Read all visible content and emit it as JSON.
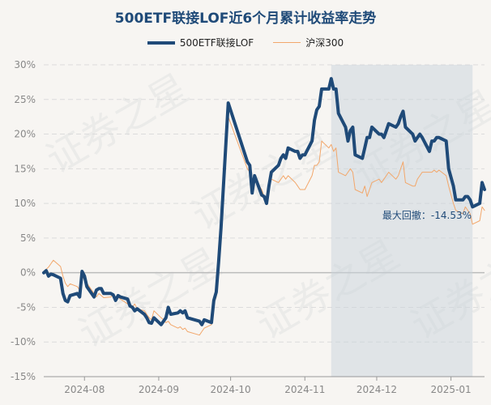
{
  "chart_data": {
    "type": "line",
    "title": "500ETF联接LOF近6个月累计收益率走势",
    "series": [
      {
        "name": "500ETF联接LOF",
        "color": "#1f4a78",
        "points": [
          [
            "2024-07-15",
            0.0
          ],
          [
            "2024-07-16",
            0.3
          ],
          [
            "2024-07-17",
            -0.5
          ],
          [
            "2024-07-18",
            -0.2
          ],
          [
            "2024-07-19",
            -0.3
          ],
          [
            "2024-07-22",
            -0.8
          ],
          [
            "2024-07-23",
            -3.0
          ],
          [
            "2024-07-24",
            -4.0
          ],
          [
            "2024-07-25",
            -4.2
          ],
          [
            "2024-07-26",
            -3.3
          ],
          [
            "2024-07-29",
            -3.0
          ],
          [
            "2024-07-30",
            -3.5
          ],
          [
            "2024-07-31",
            0.2
          ],
          [
            "2024-08-01",
            -0.5
          ],
          [
            "2024-08-02",
            -2.0
          ],
          [
            "2024-08-05",
            -3.5
          ],
          [
            "2024-08-06",
            -2.5
          ],
          [
            "2024-08-07",
            -2.3
          ],
          [
            "2024-08-08",
            -2.3
          ],
          [
            "2024-08-09",
            -3.0
          ],
          [
            "2024-08-12",
            -3.0
          ],
          [
            "2024-08-13",
            -3.2
          ],
          [
            "2024-08-14",
            -4.0
          ],
          [
            "2024-08-15",
            -3.3
          ],
          [
            "2024-08-16",
            -3.5
          ],
          [
            "2024-08-19",
            -3.8
          ],
          [
            "2024-08-20",
            -4.8
          ],
          [
            "2024-08-21",
            -5.0
          ],
          [
            "2024-08-22",
            -5.5
          ],
          [
            "2024-08-23",
            -5.2
          ],
          [
            "2024-08-26",
            -6.0
          ],
          [
            "2024-08-27",
            -6.5
          ],
          [
            "2024-08-28",
            -7.2
          ],
          [
            "2024-08-29",
            -7.3
          ],
          [
            "2024-08-30",
            -6.5
          ],
          [
            "2024-09-02",
            -7.5
          ],
          [
            "2024-09-03",
            -7.0
          ],
          [
            "2024-09-04",
            -6.5
          ],
          [
            "2024-09-05",
            -5.0
          ],
          [
            "2024-09-06",
            -6.0
          ],
          [
            "2024-09-09",
            -5.8
          ],
          [
            "2024-09-10",
            -5.5
          ],
          [
            "2024-09-11",
            -5.8
          ],
          [
            "2024-09-12",
            -5.5
          ],
          [
            "2024-09-13",
            -6.5
          ],
          [
            "2024-09-18",
            -7.0
          ],
          [
            "2024-09-19",
            -7.5
          ],
          [
            "2024-09-20",
            -6.8
          ],
          [
            "2024-09-23",
            -7.2
          ],
          [
            "2024-09-24",
            -4.0
          ],
          [
            "2024-09-25",
            -2.8
          ],
          [
            "2024-09-26",
            1.5
          ],
          [
            "2024-09-27",
            6.5
          ],
          [
            "2024-09-30",
            24.5
          ],
          [
            "2024-10-08",
            16.0
          ],
          [
            "2024-10-09",
            15.5
          ],
          [
            "2024-10-10",
            11.5
          ],
          [
            "2024-10-11",
            14.0
          ],
          [
            "2024-10-14",
            11.2
          ],
          [
            "2024-10-15",
            11.0
          ],
          [
            "2024-10-16",
            10.0
          ],
          [
            "2024-10-17",
            12.5
          ],
          [
            "2024-10-18",
            14.5
          ],
          [
            "2024-10-21",
            15.5
          ],
          [
            "2024-10-22",
            16.5
          ],
          [
            "2024-10-23",
            17.0
          ],
          [
            "2024-10-24",
            16.5
          ],
          [
            "2024-10-25",
            18.0
          ],
          [
            "2024-10-28",
            17.5
          ],
          [
            "2024-10-29",
            17.5
          ],
          [
            "2024-10-30",
            16.5
          ],
          [
            "2024-10-31",
            17.0
          ],
          [
            "2024-11-01",
            17.0
          ],
          [
            "2024-11-04",
            19.0
          ],
          [
            "2024-11-05",
            22.0
          ],
          [
            "2024-11-06",
            23.5
          ],
          [
            "2024-11-07",
            24.0
          ],
          [
            "2024-11-08",
            26.5
          ],
          [
            "2024-11-11",
            26.5
          ],
          [
            "2024-11-12",
            28.0
          ],
          [
            "2024-11-13",
            26.5
          ],
          [
            "2024-11-14",
            26.5
          ],
          [
            "2024-11-15",
            23.0
          ],
          [
            "2024-11-18",
            21.0
          ],
          [
            "2024-11-19",
            19.0
          ],
          [
            "2024-11-20",
            20.5
          ],
          [
            "2024-11-21",
            21.0
          ],
          [
            "2024-11-22",
            17.0
          ],
          [
            "2024-11-25",
            16.5
          ],
          [
            "2024-11-26",
            18.0
          ],
          [
            "2024-11-27",
            19.5
          ],
          [
            "2024-11-28",
            19.5
          ],
          [
            "2024-11-29",
            21.0
          ],
          [
            "2024-12-02",
            20.0
          ],
          [
            "2024-12-03",
            20.0
          ],
          [
            "2024-12-04",
            19.5
          ],
          [
            "2024-12-05",
            20.5
          ],
          [
            "2024-12-06",
            21.5
          ],
          [
            "2024-12-09",
            21.0
          ],
          [
            "2024-12-10",
            21.5
          ],
          [
            "2024-12-11",
            22.5
          ],
          [
            "2024-12-12",
            23.3
          ],
          [
            "2024-12-13",
            21.0
          ],
          [
            "2024-12-16",
            20.0
          ],
          [
            "2024-12-17",
            19.0
          ],
          [
            "2024-12-18",
            19.5
          ],
          [
            "2024-12-19",
            20.0
          ],
          [
            "2024-12-20",
            19.5
          ],
          [
            "2024-12-23",
            17.5
          ],
          [
            "2024-12-24",
            19.0
          ],
          [
            "2024-12-25",
            19.0
          ],
          [
            "2024-12-26",
            19.5
          ],
          [
            "2024-12-27",
            19.5
          ],
          [
            "2024-12-30",
            19.0
          ],
          [
            "2024-12-31",
            15.0
          ],
          [
            "2025-01-02",
            12.5
          ],
          [
            "2025-01-03",
            10.5
          ],
          [
            "2025-01-06",
            10.5
          ],
          [
            "2025-01-07",
            11.0
          ],
          [
            "2025-01-08",
            11.0
          ],
          [
            "2025-01-09",
            10.5
          ],
          [
            "2025-01-10",
            9.5
          ],
          [
            "2025-01-13",
            10.0
          ],
          [
            "2025-01-14",
            13.0
          ],
          [
            "2025-01-15",
            12.0
          ]
        ]
      },
      {
        "name": "沪深300",
        "color": "#f2a76b",
        "points": [
          [
            "2024-07-15",
            0.0
          ],
          [
            "2024-07-16",
            0.5
          ],
          [
            "2024-07-17",
            0.8
          ],
          [
            "2024-07-18",
            1.3
          ],
          [
            "2024-07-19",
            1.8
          ],
          [
            "2024-07-22",
            0.9
          ],
          [
            "2024-07-23",
            -0.5
          ],
          [
            "2024-07-24",
            -1.5
          ],
          [
            "2024-07-25",
            -2.0
          ],
          [
            "2024-07-26",
            -1.6
          ],
          [
            "2024-07-29",
            -2.0
          ],
          [
            "2024-07-30",
            -2.5
          ],
          [
            "2024-07-31",
            -0.5
          ],
          [
            "2024-08-01",
            -1.0
          ],
          [
            "2024-08-02",
            -1.5
          ],
          [
            "2024-08-05",
            -3.0
          ],
          [
            "2024-08-06",
            -3.5
          ],
          [
            "2024-08-07",
            -3.0
          ],
          [
            "2024-08-08",
            -3.3
          ],
          [
            "2024-08-09",
            -3.6
          ],
          [
            "2024-08-12",
            -3.5
          ],
          [
            "2024-08-13",
            -3.2
          ],
          [
            "2024-08-14",
            -3.8
          ],
          [
            "2024-08-15",
            -3.5
          ],
          [
            "2024-08-16",
            -3.8
          ],
          [
            "2024-08-19",
            -4.5
          ],
          [
            "2024-08-20",
            -4.8
          ],
          [
            "2024-08-21",
            -5.0
          ],
          [
            "2024-08-22",
            -4.5
          ],
          [
            "2024-08-23",
            -5.2
          ],
          [
            "2024-08-26",
            -5.5
          ],
          [
            "2024-08-27",
            -6.0
          ],
          [
            "2024-08-28",
            -6.5
          ],
          [
            "2024-08-29",
            -6.8
          ],
          [
            "2024-08-30",
            -5.5
          ],
          [
            "2024-09-02",
            -6.5
          ],
          [
            "2024-09-03",
            -6.8
          ],
          [
            "2024-09-04",
            -7.2
          ],
          [
            "2024-09-05",
            -7.0
          ],
          [
            "2024-09-06",
            -7.5
          ],
          [
            "2024-09-09",
            -8.0
          ],
          [
            "2024-09-10",
            -7.8
          ],
          [
            "2024-09-11",
            -8.2
          ],
          [
            "2024-09-12",
            -8.0
          ],
          [
            "2024-09-13",
            -8.5
          ],
          [
            "2024-09-18",
            -9.0
          ],
          [
            "2024-09-19",
            -8.5
          ],
          [
            "2024-09-20",
            -8.0
          ],
          [
            "2024-09-23",
            -7.5
          ],
          [
            "2024-09-24",
            -4.5
          ],
          [
            "2024-09-25",
            -3.5
          ],
          [
            "2024-09-26",
            0.5
          ],
          [
            "2024-09-27",
            5.5
          ],
          [
            "2024-09-30",
            22.5
          ],
          [
            "2024-10-08",
            15.0
          ],
          [
            "2024-10-09",
            14.5
          ],
          [
            "2024-10-10",
            13.0
          ],
          [
            "2024-10-11",
            13.5
          ],
          [
            "2024-10-14",
            12.0
          ],
          [
            "2024-10-15",
            11.0
          ],
          [
            "2024-10-16",
            10.0
          ],
          [
            "2024-10-17",
            12.5
          ],
          [
            "2024-10-18",
            13.5
          ],
          [
            "2024-10-21",
            13.0
          ],
          [
            "2024-10-22",
            13.5
          ],
          [
            "2024-10-23",
            14.0
          ],
          [
            "2024-10-24",
            13.5
          ],
          [
            "2024-10-25",
            14.0
          ],
          [
            "2024-10-28",
            13.0
          ],
          [
            "2024-10-29",
            12.5
          ],
          [
            "2024-10-30",
            12.0
          ],
          [
            "2024-10-31",
            12.0
          ],
          [
            "2024-11-01",
            12.0
          ],
          [
            "2024-11-04",
            14.0
          ],
          [
            "2024-11-05",
            15.5
          ],
          [
            "2024-11-06",
            15.5
          ],
          [
            "2024-11-07",
            16.0
          ],
          [
            "2024-11-08",
            19.0
          ],
          [
            "2024-11-11",
            18.0
          ],
          [
            "2024-11-12",
            18.5
          ],
          [
            "2024-11-13",
            17.5
          ],
          [
            "2024-11-14",
            18.0
          ],
          [
            "2024-11-15",
            14.5
          ],
          [
            "2024-11-18",
            14.0
          ],
          [
            "2024-11-19",
            14.5
          ],
          [
            "2024-11-20",
            15.0
          ],
          [
            "2024-11-21",
            14.5
          ],
          [
            "2024-11-22",
            12.0
          ],
          [
            "2024-11-25",
            11.5
          ],
          [
            "2024-11-26",
            12.5
          ],
          [
            "2024-11-27",
            11.0
          ],
          [
            "2024-11-28",
            12.0
          ],
          [
            "2024-11-29",
            13.0
          ],
          [
            "2024-12-02",
            13.5
          ],
          [
            "2024-12-03",
            13.0
          ],
          [
            "2024-12-04",
            13.5
          ],
          [
            "2024-12-05",
            14.0
          ],
          [
            "2024-12-06",
            14.5
          ],
          [
            "2024-12-09",
            13.5
          ],
          [
            "2024-12-10",
            14.0
          ],
          [
            "2024-12-11",
            15.0
          ],
          [
            "2024-12-12",
            16.0
          ],
          [
            "2024-12-13",
            13.0
          ],
          [
            "2024-12-16",
            12.5
          ],
          [
            "2024-12-17",
            12.5
          ],
          [
            "2024-12-18",
            13.5
          ],
          [
            "2024-12-19",
            14.0
          ],
          [
            "2024-12-20",
            14.5
          ],
          [
            "2024-12-23",
            14.5
          ],
          [
            "2024-12-24",
            14.5
          ],
          [
            "2024-12-25",
            14.8
          ],
          [
            "2024-12-26",
            14.5
          ],
          [
            "2024-12-27",
            14.8
          ],
          [
            "2024-12-30",
            14.0
          ],
          [
            "2024-12-31",
            12.5
          ],
          [
            "2025-01-02",
            10.0
          ],
          [
            "2025-01-03",
            9.0
          ],
          [
            "2025-01-06",
            8.5
          ],
          [
            "2025-01-07",
            9.5
          ],
          [
            "2025-01-08",
            9.0
          ],
          [
            "2025-01-09",
            8.5
          ],
          [
            "2025-01-10",
            7.0
          ],
          [
            "2025-01-13",
            7.5
          ],
          [
            "2025-01-14",
            9.5
          ],
          [
            "2025-01-15",
            9.0
          ]
        ]
      }
    ],
    "x_ticks": [
      "2024-08",
      "2024-09",
      "2024-10",
      "2024-11",
      "2024-12",
      "2025-01"
    ],
    "y_ticks": [
      "30%",
      "25%",
      "20%",
      "15%",
      "10%",
      "5%",
      "0%",
      "-5%",
      "-10%",
      "-15%"
    ],
    "ylim": [
      -15,
      30
    ],
    "xlim": [
      "2024-07-15",
      "2025-01-15"
    ],
    "grid": true,
    "legend": "top-center",
    "max_drawdown": {
      "label": "最大回撤：-14.53%",
      "start": "2024-11-12",
      "end": "2025-01-10"
    },
    "watermark": "证券之星"
  }
}
